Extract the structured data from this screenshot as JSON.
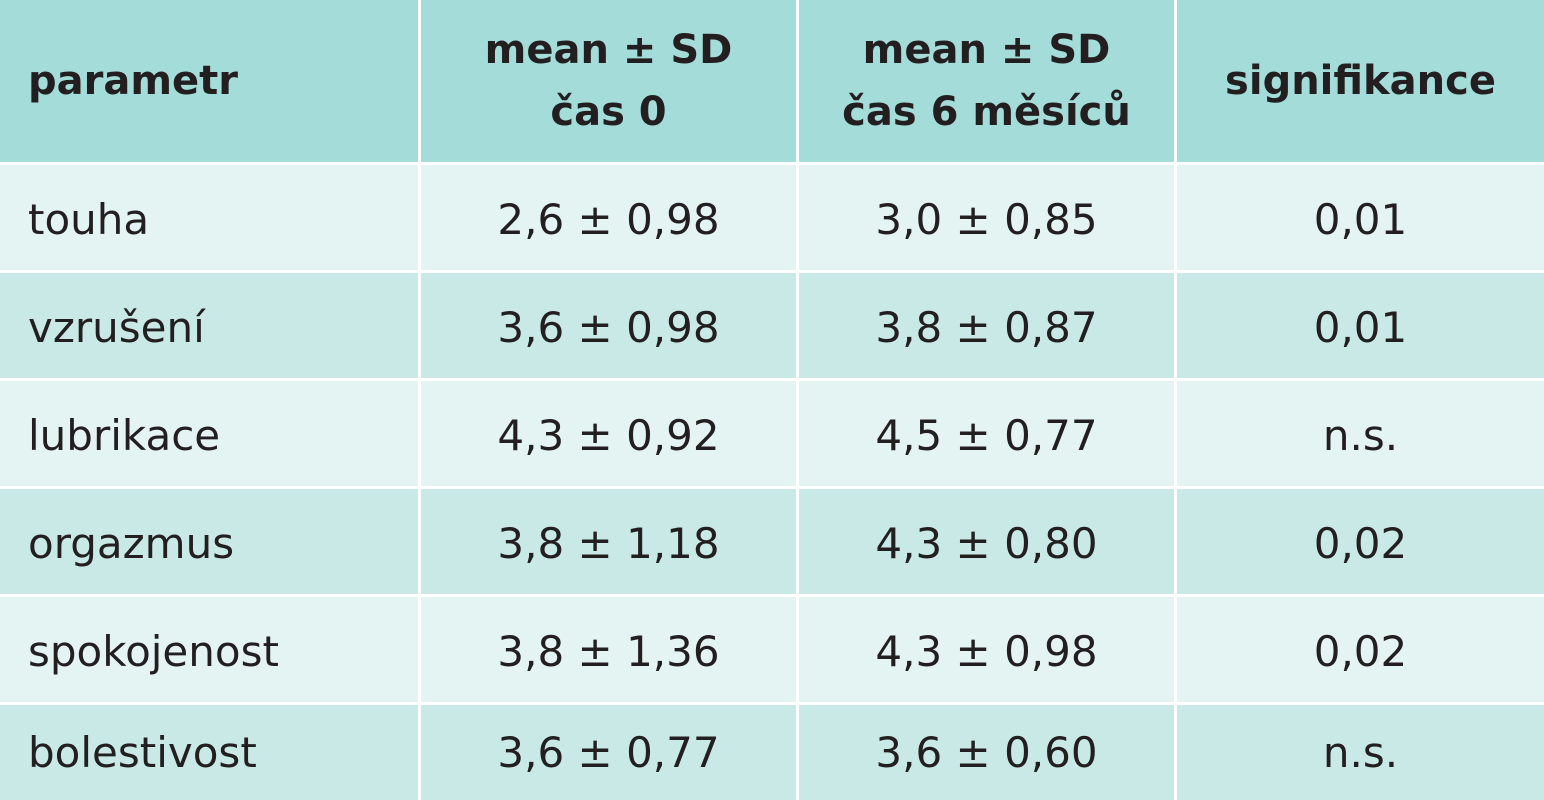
{
  "table": {
    "header": {
      "parameter": "parametr",
      "col1_line1": "mean ± SD",
      "col1_line2": "čas 0",
      "col2_line1": "mean ± SD",
      "col2_line2": "čas 6 měsíců",
      "col3": "signifikance"
    },
    "rows": [
      {
        "parameter": "touha",
        "time0": "2,6 ± 0,98",
        "time6": "3,0 ± 0,85",
        "significance": "0,01"
      },
      {
        "parameter": "vzrušení",
        "time0": "3,6 ± 0,98",
        "time6": "3,8 ± 0,87",
        "significance": "0,01"
      },
      {
        "parameter": "lubrikace",
        "time0": "4,3 ± 0,92",
        "time6": "4,5 ± 0,77",
        "significance": "n.s."
      },
      {
        "parameter": "orgazmus",
        "time0": "3,8 ± 1,18",
        "time6": "4,3 ± 0,80",
        "significance": "0,02"
      },
      {
        "parameter": "spokojenost",
        "time0": "3,8 ± 1,36",
        "time6": "4,3 ± 0,98",
        "significance": "0,02"
      },
      {
        "parameter": "bolestivost",
        "time0": "3,6 ± 0,77",
        "time6": "3,6 ± 0,60",
        "significance": "n.s."
      }
    ]
  },
  "colors": {
    "header_bg": "#a3dcd8",
    "row_light": "#e4f4f3",
    "row_dark": "#c9e9e6",
    "separator": "#ffffff",
    "text": "#231f20"
  }
}
